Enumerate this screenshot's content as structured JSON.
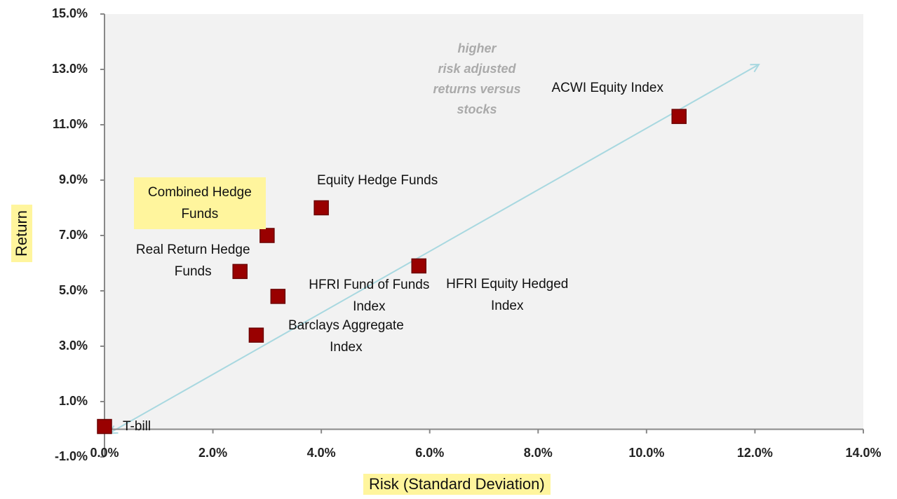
{
  "chart_data": {
    "type": "scatter",
    "x_label": "Risk (Standard Deviation)",
    "y_label": "Return",
    "annotation": [
      "higher",
      "risk adjusted",
      "returns versus",
      "stocks"
    ],
    "labels": [
      "T-bill",
      "ACWI Equity Index",
      "Equity Hedge Funds",
      "Combined Hedge Funds",
      "Real Return Hedge Funds",
      "HFRI Fund of Funds Index",
      "HFRI Equity Hedged Index",
      "Barclays Aggregate Index"
    ],
    "x": [
      0.0,
      10.6,
      4.0,
      3.0,
      2.5,
      3.2,
      5.8,
      2.8
    ],
    "values": [
      0.1,
      11.3,
      8.0,
      7.0,
      5.7,
      4.8,
      5.9,
      3.4
    ],
    "color": "#990000",
    "highlight": "#fff59d",
    "xlim": [
      0,
      14
    ],
    "ylim": [
      -1,
      15
    ],
    "xticks": [
      {
        "value": 0,
        "label": "0.0%"
      },
      {
        "value": 2,
        "label": "2.0%"
      },
      {
        "value": 4,
        "label": "4.0%"
      },
      {
        "value": 6,
        "label": "6.0%"
      },
      {
        "value": 8,
        "label": "8.0%"
      },
      {
        "value": 10,
        "label": "10.0%"
      },
      {
        "value": 12,
        "label": "12.0%"
      },
      {
        "value": 14,
        "label": "14.0%"
      }
    ],
    "yticks": [
      {
        "value": -1,
        "label": "-1.0%"
      },
      {
        "value": 1,
        "label": "1.0%"
      },
      {
        "value": 3,
        "label": "3.0%"
      },
      {
        "value": 5,
        "label": "5.0%"
      },
      {
        "value": 7,
        "label": "7.0%"
      },
      {
        "value": 9,
        "label": "9.0%"
      },
      {
        "value": 11,
        "label": "11.0%"
      },
      {
        "value": 13,
        "label": "13.0%"
      },
      {
        "value": 15,
        "label": "15.0%"
      }
    ]
  }
}
